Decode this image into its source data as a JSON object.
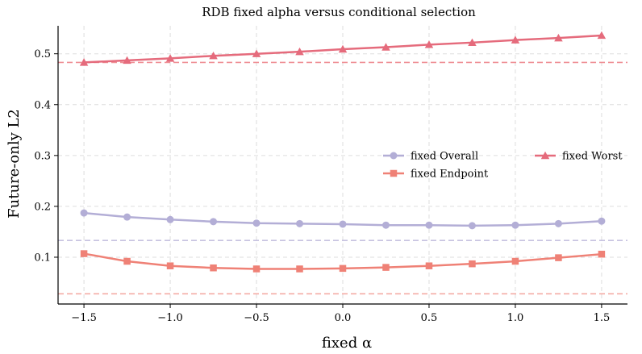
{
  "chart_data": {
    "type": "line",
    "title": "RDB fixed alpha versus conditional selection",
    "xlabel": "fixed α",
    "ylabel": "Future-only L2",
    "xlim": [
      -1.65,
      1.65
    ],
    "ylim": [
      0.008,
      0.555
    ],
    "xticks": [
      -1.5,
      -1.0,
      -0.5,
      0.0,
      0.5,
      1.0,
      1.5
    ],
    "xtick_labels": [
      "−1.5",
      "−1.0",
      "−0.5",
      "0.0",
      "0.5",
      "1.0",
      "1.5"
    ],
    "yticks": [
      0.1,
      0.2,
      0.3,
      0.4,
      0.5
    ],
    "ytick_labels": [
      "0.1",
      "0.2",
      "0.3",
      "0.4",
      "0.5"
    ],
    "grid": true,
    "legend_position": "center-right",
    "x": [
      -1.5,
      -1.25,
      -1.0,
      -0.75,
      -0.5,
      -0.25,
      0.0,
      0.25,
      0.5,
      0.75,
      1.0,
      1.25,
      1.5
    ],
    "series": [
      {
        "name": "fixed Overall",
        "color": "#b3aed6",
        "marker": "circle",
        "values": [
          0.187,
          0.179,
          0.174,
          0.17,
          0.167,
          0.166,
          0.165,
          0.163,
          0.163,
          0.162,
          0.163,
          0.166,
          0.171
        ]
      },
      {
        "name": "fixed Endpoint",
        "color": "#ef8176",
        "marker": "square",
        "values": [
          0.107,
          0.092,
          0.083,
          0.079,
          0.077,
          0.077,
          0.078,
          0.08,
          0.083,
          0.087,
          0.092,
          0.099,
          0.106
        ]
      },
      {
        "name": "fixed Worst",
        "color": "#e56b7c",
        "marker": "triangle",
        "values": [
          0.483,
          0.487,
          0.491,
          0.496,
          0.5,
          0.504,
          0.509,
          0.513,
          0.518,
          0.522,
          0.527,
          0.531,
          0.536
        ]
      }
    ],
    "reference_lines": [
      {
        "y": 0.483,
        "color": "#ef8f95",
        "style": "dashed"
      },
      {
        "y": 0.133,
        "color": "#c6c2e0",
        "style": "dashed"
      },
      {
        "y": 0.028,
        "color": "#f4a59e",
        "style": "dashed"
      }
    ],
    "legend_layout": [
      [
        "fixed Overall",
        "fixed Worst"
      ],
      [
        "fixed Endpoint"
      ]
    ]
  }
}
